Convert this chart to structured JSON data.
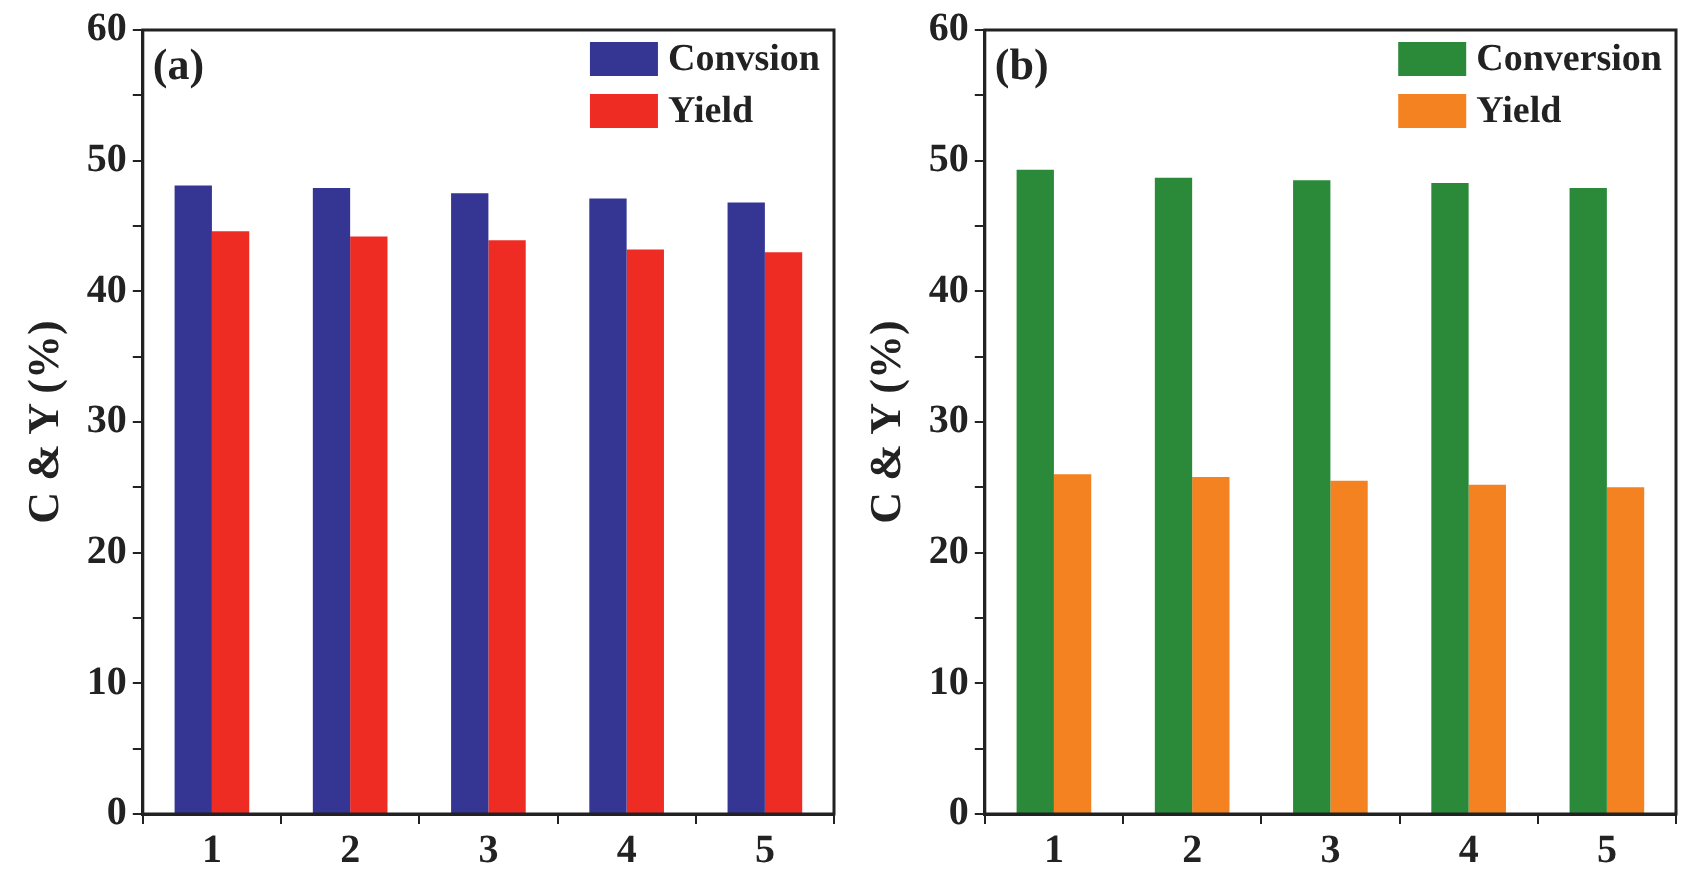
{
  "chart_data": [
    {
      "type": "bar",
      "title": "(a)",
      "ylabel": "C & Y (%)",
      "categories": [
        "1",
        "2",
        "3",
        "4",
        "5"
      ],
      "series": [
        {
          "name": "Convsion",
          "color": "#353594",
          "values": [
            48.1,
            47.9,
            47.5,
            47.1,
            46.8
          ]
        },
        {
          "name": "Yield",
          "color": "#ee2c24",
          "values": [
            44.6,
            44.2,
            43.9,
            43.2,
            43.0
          ]
        }
      ],
      "ylim": [
        0,
        60
      ],
      "yticks": [
        0,
        {
          "value": 5,
          "label": null
        },
        10,
        {
          "value": 15,
          "label": null
        },
        20,
        {
          "value": 25,
          "label": null
        },
        30,
        {
          "value": 35,
          "label": null
        },
        40,
        {
          "value": 45,
          "label": null
        },
        50,
        {
          "value": 55,
          "label": null
        },
        60
      ],
      "grid": false,
      "legend": "top right"
    },
    {
      "type": "bar",
      "title": "(b)",
      "ylabel": "C & Y (%)",
      "categories": [
        "1",
        "2",
        "3",
        "4",
        "5"
      ],
      "series": [
        {
          "name": "Conversion",
          "color": "#2a8a3a",
          "values": [
            49.3,
            48.7,
            48.5,
            48.3,
            47.9
          ]
        },
        {
          "name": "Yield",
          "color": "#f58220",
          "values": [
            26.0,
            25.8,
            25.5,
            25.2,
            25.0
          ]
        }
      ],
      "ylim": [
        0,
        60
      ],
      "yticks": [
        0,
        {
          "value": 5,
          "label": null
        },
        10,
        {
          "value": 15,
          "label": null
        },
        20,
        {
          "value": 25,
          "label": null
        },
        30,
        {
          "value": 35,
          "label": null
        },
        40,
        {
          "value": 45,
          "label": null
        },
        50,
        {
          "value": 55,
          "label": null
        },
        60
      ],
      "grid": false,
      "legend": "top right"
    }
  ]
}
